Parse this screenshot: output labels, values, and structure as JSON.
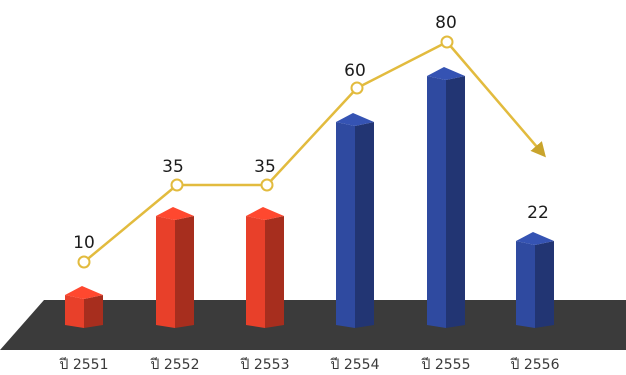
{
  "chart_data": {
    "type": "bar",
    "title": "",
    "xlabel": "",
    "ylabel": "",
    "categories": [
      "ปี 2551",
      "ปี 2552",
      "ปี 2553",
      "ปี 2554",
      "ปี 2555",
      "ปี 2556"
    ],
    "values": [
      10,
      35,
      35,
      60,
      80,
      22
    ],
    "ylim": [
      0,
      100
    ],
    "bar_colors": [
      "#e8402a",
      "#e8402a",
      "#e8402a",
      "#2f4aa0",
      "#2f4aa0",
      "#2f4aa0"
    ],
    "trend_line": {
      "values": [
        10,
        35,
        35,
        60,
        80
      ],
      "color": "#e2bb3e",
      "marker": "open-circle",
      "ends_with_arrow": true
    },
    "value_labels": [
      "10",
      "35",
      "35",
      "60",
      "80",
      "22"
    ],
    "floor_color": "#3b3b3b"
  }
}
